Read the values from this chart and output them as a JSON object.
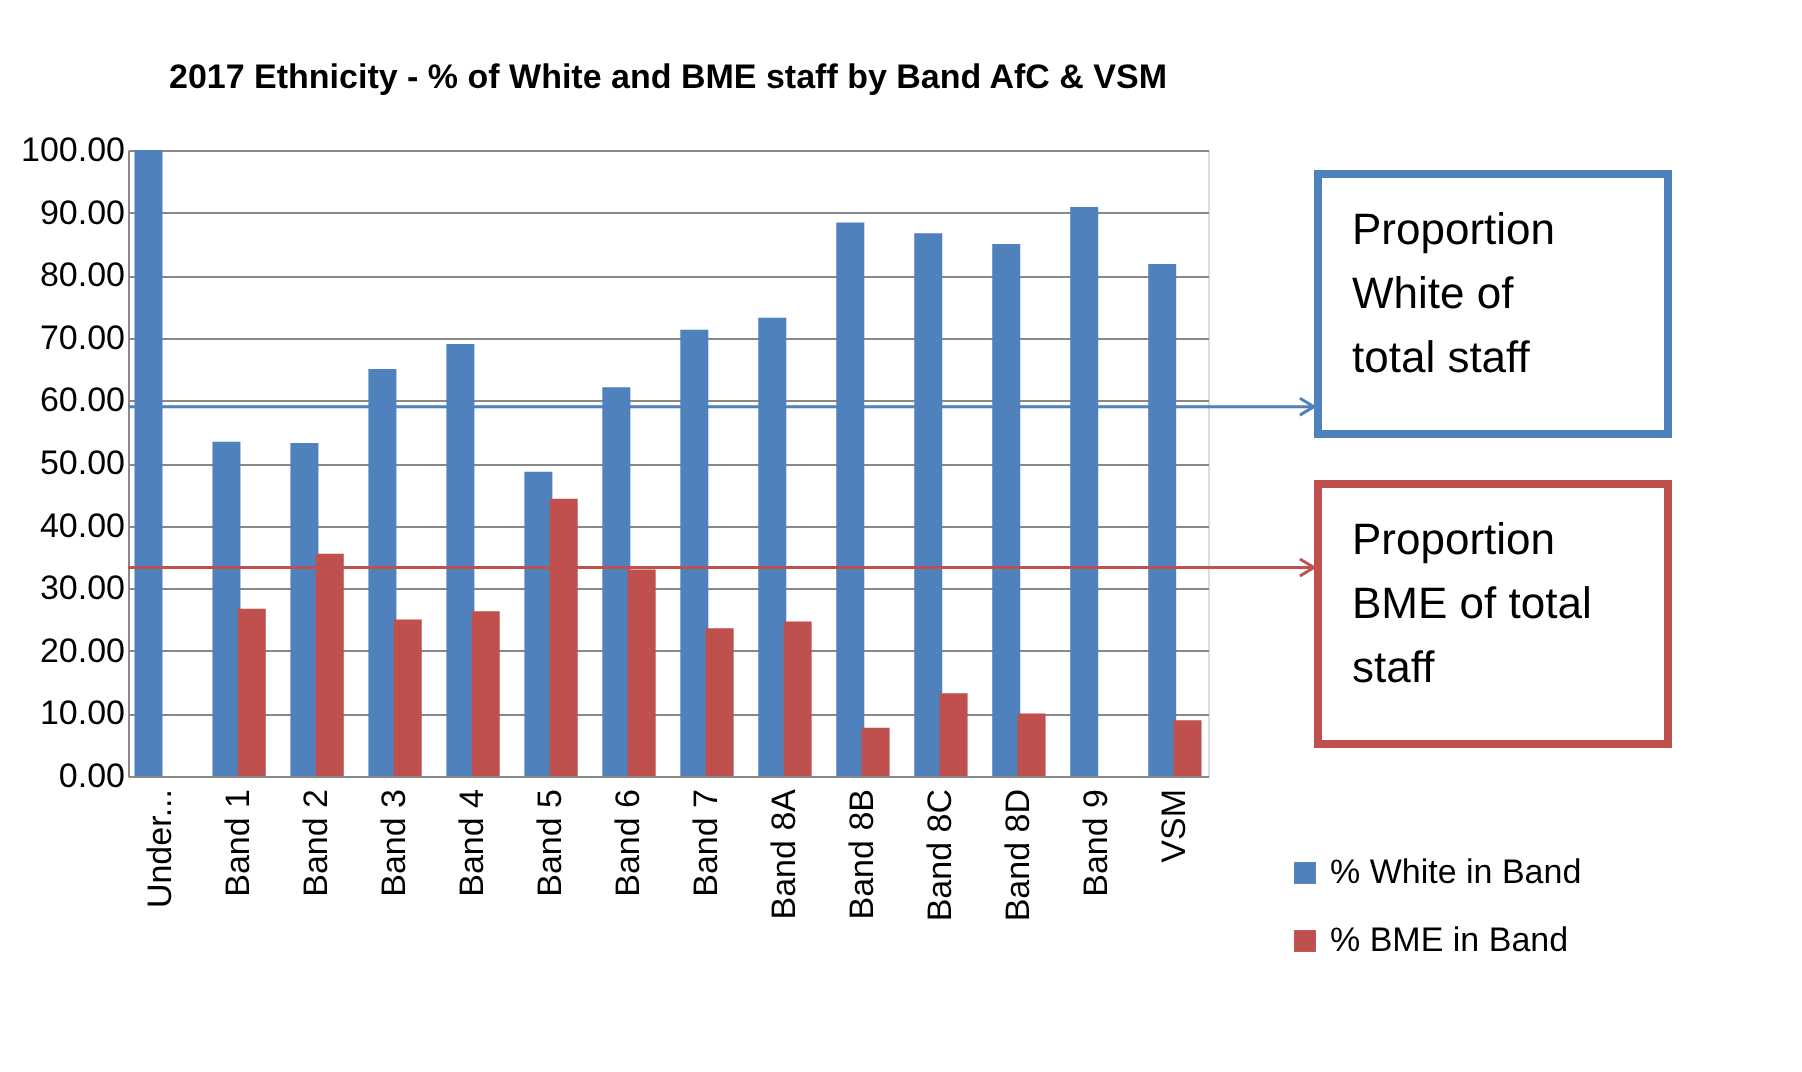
{
  "chart_data": {
    "type": "bar",
    "title": "2017 Ethnicity - % of White and BME staff by Band AfC & VSM",
    "categories": [
      "Under...",
      "Band 1",
      "Band 2",
      "Band 3",
      "Band 4",
      "Band 5",
      "Band 6",
      "Band 7",
      "Band 8A",
      "Band 8B",
      "Band 8C",
      "Band 8D",
      "Band 9",
      "VSM"
    ],
    "series": [
      {
        "name": "% White in Band",
        "color": "#4f81bd",
        "values": [
          100,
          53.4,
          53.2,
          65,
          69,
          48.6,
          62.1,
          71.3,
          73.2,
          88.4,
          86.7,
          85,
          90.9,
          81.8
        ]
      },
      {
        "name": "% BME in Band",
        "color": "#c0504d",
        "values": [
          null,
          26.7,
          35.5,
          25,
          26.3,
          44.3,
          33,
          23.6,
          24.7,
          7.7,
          13.2,
          10,
          null,
          8.9
        ]
      }
    ],
    "ylim": [
      0,
      100
    ],
    "yticks": [
      {
        "value": 0,
        "label": "0.00"
      },
      {
        "value": 10,
        "label": "10.00"
      },
      {
        "value": 20,
        "label": "20.00"
      },
      {
        "value": 30,
        "label": "30.00"
      },
      {
        "value": 40,
        "label": "40.00"
      },
      {
        "value": 50,
        "label": "50.00"
      },
      {
        "value": 60,
        "label": "60.00"
      },
      {
        "value": 70,
        "label": "70.00"
      },
      {
        "value": 80,
        "label": "80.00"
      },
      {
        "value": 90,
        "label": "90.00"
      },
      {
        "value": 100,
        "label": "100.00"
      }
    ],
    "ref_lines": [
      {
        "axis": "y",
        "value": 59,
        "label": "Proportion\nWhite of\ntotal staff",
        "color": "#4f81bd"
      },
      {
        "axis": "y",
        "value": 33.3,
        "label": "Proportion\nBME of total\nstaff",
        "color": "#c0504d"
      }
    ],
    "grid": "y",
    "legend": "bottom right"
  }
}
